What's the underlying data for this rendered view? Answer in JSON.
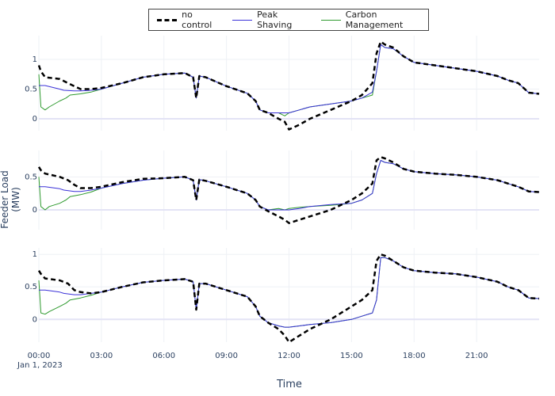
{
  "legend": {
    "items": [
      {
        "label": "no control",
        "style": "dash",
        "color": "#000000"
      },
      {
        "label": "Peak Shaving",
        "style": "solid",
        "color": "#3b32d8"
      },
      {
        "label": "Carbon Management",
        "style": "solid",
        "color": "#2e9a2e"
      }
    ]
  },
  "axes": {
    "ylabel": "Feeder Load (MW)",
    "xlabel": "Time",
    "date_label": "Jan 1, 2023"
  },
  "chart_data": {
    "type": "line",
    "x_unit": "hour of day",
    "x_range": [
      0,
      24
    ],
    "x_ticks": [
      {
        "hour": 0,
        "label": "00:00"
      },
      {
        "hour": 3,
        "label": "03:00"
      },
      {
        "hour": 6,
        "label": "06:00"
      },
      {
        "hour": 9,
        "label": "09:00"
      },
      {
        "hour": 12,
        "label": "12:00"
      },
      {
        "hour": 15,
        "label": "15:00"
      },
      {
        "hour": 18,
        "label": "18:00"
      },
      {
        "hour": 21,
        "label": "21:00"
      }
    ],
    "panels": [
      {
        "ylim": [
          -0.2,
          1.4
        ],
        "y_ticks": [
          0,
          0.5,
          1
        ],
        "y_tick_labels": [
          "0",
          "0.5",
          "1"
        ],
        "series": [
          {
            "name": "no control",
            "style": "dash",
            "color": "#000000",
            "x": [
              0,
              0.1,
              0.3,
              1,
              1.4,
              1.7,
              2,
              2.5,
              3,
              4,
              5,
              6,
              7,
              7.4,
              7.55,
              7.7,
              8,
              9,
              10,
              10.4,
              10.6,
              11,
              11.5,
              11.8,
              12,
              12.5,
              13,
              14,
              15,
              15.5,
              16,
              16.2,
              16.4,
              16.6,
              17,
              17.5,
              18,
              19,
              20,
              21,
              22,
              22.5,
              23,
              23.5,
              24
            ],
            "y": [
              0.9,
              0.8,
              0.7,
              0.67,
              0.6,
              0.55,
              0.5,
              0.5,
              0.52,
              0.6,
              0.7,
              0.75,
              0.77,
              0.7,
              0.35,
              0.72,
              0.7,
              0.55,
              0.43,
              0.3,
              0.15,
              0.1,
              0.0,
              -0.05,
              -0.18,
              -0.1,
              0.0,
              0.15,
              0.3,
              0.4,
              0.6,
              1.1,
              1.3,
              1.25,
              1.2,
              1.05,
              0.95,
              0.9,
              0.85,
              0.8,
              0.72,
              0.65,
              0.6,
              0.44,
              0.42
            ]
          },
          {
            "name": "Peak Shaving",
            "style": "solid",
            "color": "#3b32d8",
            "x": [
              0,
              0.1,
              0.3,
              1,
              1.2,
              1.7,
              2,
              2.5,
              3,
              4,
              5,
              6,
              7,
              7.4,
              7.55,
              7.7,
              8,
              9,
              10,
              10.4,
              10.6,
              11,
              11.5,
              11.8,
              12,
              12.5,
              13,
              14,
              15,
              15.5,
              16,
              16.2,
              16.4,
              16.6,
              17,
              17.5,
              18,
              19,
              20,
              21,
              22,
              22.5,
              23,
              23.5,
              24
            ],
            "y": [
              0.56,
              0.56,
              0.56,
              0.5,
              0.48,
              0.47,
              0.47,
              0.48,
              0.5,
              0.6,
              0.7,
              0.75,
              0.77,
              0.7,
              0.35,
              0.72,
              0.7,
              0.55,
              0.43,
              0.3,
              0.15,
              0.1,
              0.1,
              0.1,
              0.1,
              0.15,
              0.2,
              0.25,
              0.3,
              0.35,
              0.45,
              0.8,
              1.25,
              1.2,
              1.18,
              1.05,
              0.95,
              0.9,
              0.85,
              0.8,
              0.72,
              0.65,
              0.6,
              0.44,
              0.42
            ]
          },
          {
            "name": "Carbon Management",
            "style": "solid",
            "color": "#2e9a2e",
            "x": [
              0,
              0.1,
              0.3,
              0.5,
              1,
              1.3,
              1.5,
              2,
              2.5,
              3,
              4,
              5,
              6,
              7,
              7.4,
              7.55,
              7.7,
              8,
              9,
              10,
              10.4,
              10.6,
              11,
              11.5,
              11.8,
              12,
              12.5,
              13,
              14,
              15,
              15.5,
              16,
              16.2,
              16.4,
              16.6,
              17,
              17.5,
              18,
              19,
              20,
              21,
              22,
              22.5,
              23,
              23.5,
              24
            ],
            "y": [
              0.75,
              0.2,
              0.15,
              0.2,
              0.3,
              0.35,
              0.4,
              0.42,
              0.45,
              0.5,
              0.6,
              0.7,
              0.75,
              0.77,
              0.7,
              0.35,
              0.72,
              0.7,
              0.55,
              0.43,
              0.3,
              0.15,
              0.1,
              0.1,
              0.05,
              0.1,
              0.15,
              0.2,
              0.25,
              0.3,
              0.35,
              0.4,
              0.8,
              1.25,
              1.2,
              1.18,
              1.05,
              0.95,
              0.9,
              0.85,
              0.8,
              0.72,
              0.65,
              0.6,
              0.44,
              0.42
            ]
          }
        ]
      },
      {
        "ylim": [
          -0.3,
          0.9
        ],
        "y_ticks": [
          0,
          0.5
        ],
        "y_tick_labels": [
          "0",
          "0.5"
        ],
        "series": [
          {
            "name": "no control",
            "style": "dash",
            "color": "#000000",
            "x": [
              0,
              0.1,
              0.3,
              1,
              1.4,
              1.7,
              2,
              2.5,
              3,
              4,
              5,
              6,
              7,
              7.4,
              7.55,
              7.7,
              8,
              9,
              10,
              10.4,
              10.6,
              11,
              11.5,
              11.8,
              12,
              12.5,
              13,
              14,
              15,
              15.5,
              16,
              16.2,
              16.4,
              16.6,
              17,
              17.5,
              18,
              19,
              20,
              21,
              22,
              22.5,
              23,
              23.5,
              24
            ],
            "y": [
              0.65,
              0.6,
              0.55,
              0.5,
              0.45,
              0.38,
              0.33,
              0.33,
              0.35,
              0.42,
              0.47,
              0.48,
              0.5,
              0.45,
              0.15,
              0.46,
              0.44,
              0.35,
              0.25,
              0.15,
              0.05,
              -0.02,
              -0.1,
              -0.15,
              -0.2,
              -0.15,
              -0.1,
              0.0,
              0.15,
              0.25,
              0.4,
              0.75,
              0.8,
              0.78,
              0.72,
              0.62,
              0.58,
              0.55,
              0.53,
              0.5,
              0.45,
              0.4,
              0.35,
              0.28,
              0.27
            ]
          },
          {
            "name": "Peak Shaving",
            "style": "solid",
            "color": "#3b32d8",
            "x": [
              0,
              0.1,
              0.3,
              1,
              1.2,
              1.7,
              2,
              2.5,
              3,
              4,
              5,
              6,
              7,
              7.4,
              7.55,
              7.7,
              8,
              9,
              10,
              10.4,
              10.6,
              11,
              11.5,
              11.8,
              12,
              12.5,
              13,
              14,
              15,
              15.5,
              16,
              16.2,
              16.4,
              16.6,
              17,
              17.5,
              18,
              19,
              20,
              21,
              22,
              22.5,
              23,
              23.5,
              24
            ],
            "y": [
              0.35,
              0.35,
              0.35,
              0.32,
              0.3,
              0.28,
              0.28,
              0.3,
              0.33,
              0.4,
              0.45,
              0.48,
              0.5,
              0.45,
              0.15,
              0.46,
              0.44,
              0.35,
              0.25,
              0.15,
              0.05,
              0.0,
              0.0,
              0.0,
              0.0,
              0.02,
              0.05,
              0.08,
              0.1,
              0.15,
              0.25,
              0.55,
              0.75,
              0.72,
              0.7,
              0.62,
              0.58,
              0.55,
              0.53,
              0.5,
              0.45,
              0.4,
              0.35,
              0.28,
              0.27
            ]
          },
          {
            "name": "Carbon Management",
            "style": "solid",
            "color": "#2e9a2e",
            "x": [
              0,
              0.1,
              0.3,
              0.5,
              1,
              1.3,
              1.5,
              2,
              2.5,
              3,
              4,
              5,
              6,
              7,
              7.4,
              7.55,
              7.7,
              8,
              9,
              10,
              10.4,
              10.6,
              11,
              11.5,
              11.8,
              12,
              12.5,
              13,
              14,
              15,
              15.5,
              16,
              16.2,
              16.4,
              16.6,
              17,
              17.5,
              18,
              19,
              20,
              21,
              22,
              22.5,
              23,
              23.5,
              24
            ],
            "y": [
              0.5,
              0.05,
              0.0,
              0.05,
              0.1,
              0.15,
              0.2,
              0.23,
              0.27,
              0.33,
              0.4,
              0.45,
              0.48,
              0.5,
              0.45,
              0.15,
              0.46,
              0.44,
              0.35,
              0.25,
              0.15,
              0.05,
              0.0,
              0.02,
              0.0,
              0.02,
              0.04,
              0.05,
              0.07,
              0.1,
              0.15,
              0.25,
              0.55,
              0.75,
              0.72,
              0.7,
              0.62,
              0.58,
              0.55,
              0.53,
              0.5,
              0.45,
              0.4,
              0.35,
              0.28,
              0.27
            ]
          }
        ]
      },
      {
        "ylim": [
          -0.35,
          1.1
        ],
        "y_ticks": [
          0,
          0.5,
          1
        ],
        "y_tick_labels": [
          "0",
          "0.5",
          "1"
        ],
        "series": [
          {
            "name": "no control",
            "style": "dash",
            "color": "#000000",
            "x": [
              0,
              0.1,
              0.3,
              1,
              1.4,
              1.7,
              2,
              2.5,
              3,
              4,
              5,
              6,
              7,
              7.4,
              7.55,
              7.7,
              8,
              9,
              10,
              10.4,
              10.6,
              11,
              11.5,
              11.8,
              12,
              12.5,
              13,
              14,
              15,
              15.5,
              16,
              16.2,
              16.4,
              16.6,
              17,
              17.5,
              18,
              19,
              20,
              21,
              22,
              22.5,
              23,
              23.5,
              24
            ],
            "y": [
              0.75,
              0.7,
              0.63,
              0.6,
              0.55,
              0.45,
              0.42,
              0.4,
              0.42,
              0.5,
              0.57,
              0.6,
              0.62,
              0.58,
              0.15,
              0.55,
              0.55,
              0.45,
              0.35,
              0.2,
              0.05,
              -0.05,
              -0.15,
              -0.25,
              -0.35,
              -0.25,
              -0.15,
              0.0,
              0.2,
              0.3,
              0.45,
              0.9,
              1.0,
              0.98,
              0.9,
              0.8,
              0.75,
              0.72,
              0.7,
              0.65,
              0.58,
              0.5,
              0.45,
              0.33,
              0.32
            ]
          },
          {
            "name": "Peak Shaving",
            "style": "solid",
            "color": "#3b32d8",
            "x": [
              0,
              0.1,
              0.3,
              1,
              1.2,
              1.7,
              2,
              2.5,
              3,
              4,
              5,
              6,
              7,
              7.4,
              7.55,
              7.7,
              8,
              9,
              10,
              10.4,
              10.6,
              11,
              11.5,
              11.8,
              12,
              12.5,
              13,
              14,
              15,
              15.5,
              16,
              16.2,
              16.4,
              16.6,
              17,
              17.5,
              18,
              19,
              20,
              21,
              22,
              22.5,
              23,
              23.5,
              24
            ],
            "y": [
              0.45,
              0.45,
              0.45,
              0.42,
              0.4,
              0.38,
              0.38,
              0.4,
              0.42,
              0.5,
              0.57,
              0.6,
              0.62,
              0.58,
              0.15,
              0.55,
              0.55,
              0.45,
              0.35,
              0.2,
              0.05,
              -0.05,
              -0.1,
              -0.12,
              -0.12,
              -0.1,
              -0.08,
              -0.05,
              0.0,
              0.05,
              0.1,
              0.3,
              0.95,
              0.95,
              0.9,
              0.8,
              0.75,
              0.72,
              0.7,
              0.65,
              0.58,
              0.5,
              0.45,
              0.33,
              0.32
            ]
          },
          {
            "name": "Carbon Management",
            "style": "solid",
            "color": "#2e9a2e",
            "x": [
              0,
              0.1,
              0.3,
              0.5,
              1,
              1.3,
              1.5,
              2,
              2.5,
              3,
              4,
              5,
              6,
              7,
              7.4,
              7.55,
              7.7,
              8,
              9,
              10,
              10.4,
              10.6,
              11,
              11.5,
              11.8,
              12,
              12.5,
              13,
              14,
              15,
              15.5,
              16,
              16.2,
              16.4,
              16.6,
              17,
              17.5,
              18,
              19,
              20,
              21,
              22,
              22.5,
              23,
              23.5,
              24
            ],
            "y": [
              0.6,
              0.1,
              0.08,
              0.12,
              0.2,
              0.25,
              0.3,
              0.33,
              0.37,
              0.42,
              0.5,
              0.57,
              0.6,
              0.62,
              0.58,
              0.15,
              0.55,
              0.55,
              0.45,
              0.35,
              0.2,
              0.05,
              -0.05,
              -0.1,
              -0.12,
              -0.12,
              -0.1,
              -0.08,
              -0.05,
              0.0,
              0.05,
              0.1,
              0.3,
              0.95,
              0.95,
              0.9,
              0.8,
              0.75,
              0.72,
              0.7,
              0.65,
              0.58,
              0.5,
              0.45,
              0.33,
              0.32
            ]
          }
        ]
      }
    ]
  }
}
